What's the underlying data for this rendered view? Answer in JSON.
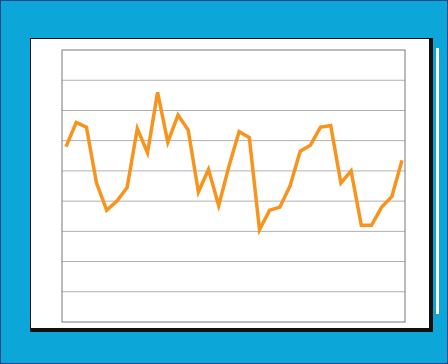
{
  "chart_data": {
    "type": "line",
    "title": "",
    "xlabel": "",
    "ylabel": "",
    "ylim": [
      0,
      9
    ],
    "grid": true,
    "series": [
      {
        "values": [
          5.8,
          6.6,
          6.45,
          4.6,
          3.7,
          4.0,
          4.45,
          6.4,
          5.6,
          7.6,
          5.95,
          6.85,
          6.35,
          4.3,
          5.05,
          3.85,
          5.15,
          6.3,
          6.1,
          3.05,
          3.7,
          3.8,
          4.5,
          5.65,
          5.85,
          6.45,
          6.5,
          4.6,
          5.0,
          3.2,
          3.2,
          3.8,
          4.15,
          5.35
        ]
      }
    ],
    "colors": {
      "line": "#f7941d",
      "grid": "#b0b0b0",
      "frame": "#0ca6d8"
    }
  }
}
